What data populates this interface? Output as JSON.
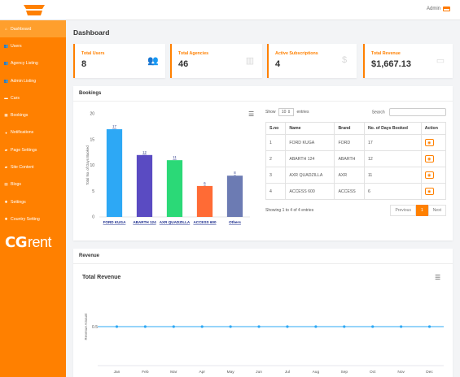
{
  "header": {
    "user": "Admin"
  },
  "sidebar": {
    "items": [
      {
        "label": "Dashboard",
        "icon": "home-icon",
        "active": true
      },
      {
        "label": "Users",
        "icon": "users-icon"
      },
      {
        "label": "Agency Listing",
        "icon": "users-icon"
      },
      {
        "label": "Admin Listing",
        "icon": "users-icon"
      },
      {
        "label": "Cars",
        "icon": "car-icon"
      },
      {
        "label": "Bookings",
        "icon": "calendar-icon"
      },
      {
        "label": "Notifications",
        "icon": "bell-icon"
      },
      {
        "label": "Page Settings",
        "icon": "folder-icon"
      },
      {
        "label": "Site Content",
        "icon": "folder-icon"
      },
      {
        "label": "Blogs",
        "icon": "blog-icon"
      },
      {
        "label": "Settings",
        "icon": "gear-icon"
      },
      {
        "label": "Country Setting",
        "icon": "gear-icon"
      }
    ],
    "brand_cg": "CG",
    "brand_rent": "rent"
  },
  "page": {
    "title": "Dashboard"
  },
  "stats": [
    {
      "label": "Total Users",
      "value": "8",
      "icon": "users-icon"
    },
    {
      "label": "Total Agencies",
      "value": "46",
      "icon": "building-icon"
    },
    {
      "label": "Active Subscriptions",
      "value": "4",
      "icon": "dollar-icon"
    },
    {
      "label": "Total Revenue",
      "value": "$1,667.13",
      "icon": "money-icon"
    }
  ],
  "bookings": {
    "title": "Bookings",
    "show_label": "Show",
    "show_value": "10",
    "entries_label": "entries",
    "search_label": "Search",
    "columns": [
      "S.no",
      "Name",
      "Brand",
      "No. of Days Booked",
      "Action"
    ],
    "rows": [
      [
        "1",
        "FORD KUGA",
        "FORD",
        "17"
      ],
      [
        "2",
        "ABARTH 124",
        "ABARTH",
        "12"
      ],
      [
        "3",
        "AXR QUADZILLA",
        "AXR",
        "11"
      ],
      [
        "4",
        "ACCESS 600",
        "ACCESS",
        "6"
      ]
    ],
    "info": "Showing 1 to 4 of 4 entries",
    "prev": "Previous",
    "page": "1",
    "next": "Next"
  },
  "revenue": {
    "section": "Revenue",
    "title": "Total Revenue"
  },
  "chart_data": [
    {
      "type": "bar",
      "categories": [
        "FORD KUGA",
        "ABARTH 124",
        "AXR QUADZILLA",
        "ACCESS 600",
        "Others"
      ],
      "values": [
        17,
        12,
        11,
        6,
        8
      ],
      "colors": [
        "#2da8f5",
        "#5a4bc2",
        "#2bd977",
        "#ff6b35",
        "#6c7bb3"
      ],
      "ylabel": "Total No. of Days Booked",
      "ylim": [
        0,
        20
      ],
      "yticks": [
        0,
        5,
        10,
        15,
        20
      ]
    },
    {
      "type": "line",
      "categories": [
        "Jan",
        "Feb",
        "Mar",
        "Apr",
        "May",
        "Jun",
        "Jul",
        "Aug",
        "Sep",
        "Oct",
        "Nov",
        "Dec"
      ],
      "values": [
        0.5,
        0.5,
        0.5,
        0.5,
        0.5,
        0.5,
        0.5,
        0.5,
        0.5,
        0.5,
        0.5,
        0.5
      ],
      "ylabel": "Revenue Amount",
      "ytick": "0.5",
      "color": "#2da8f5"
    }
  ]
}
